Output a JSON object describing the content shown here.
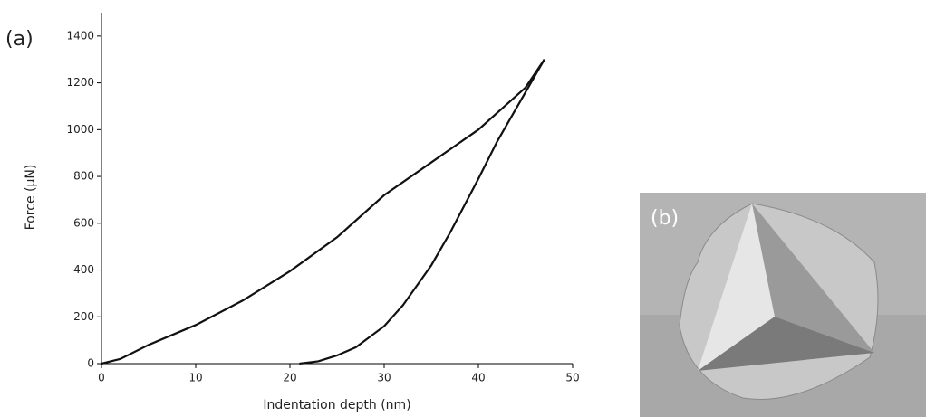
{
  "panels": {
    "a": "(a)",
    "b": "(b)"
  },
  "chart_data": {
    "type": "line",
    "xlabel": "Indentation depth (nm)",
    "ylabel": "Force (µN)",
    "xlim": [
      0,
      50
    ],
    "xticks": [
      0,
      10,
      20,
      30,
      40,
      50
    ],
    "ylim": [
      0,
      1500
    ],
    "yticks": [
      0,
      200,
      400,
      600,
      800,
      1000,
      1200,
      1400
    ],
    "series": [
      {
        "color": "#111111",
        "x": [
          0,
          2,
          5,
          10,
          15,
          20,
          25,
          30,
          35,
          40,
          45,
          47
        ],
        "values": [
          0,
          20,
          80,
          165,
          270,
          395,
          540,
          720,
          860,
          1000,
          1180,
          1300
        ]
      },
      {
        "color": "#111111",
        "x": [
          47,
          45,
          42,
          40,
          37,
          35,
          32,
          30,
          27,
          25,
          23,
          21
        ],
        "values": [
          1300,
          1160,
          950,
          790,
          560,
          420,
          250,
          160,
          70,
          35,
          10,
          0
        ]
      }
    ]
  }
}
